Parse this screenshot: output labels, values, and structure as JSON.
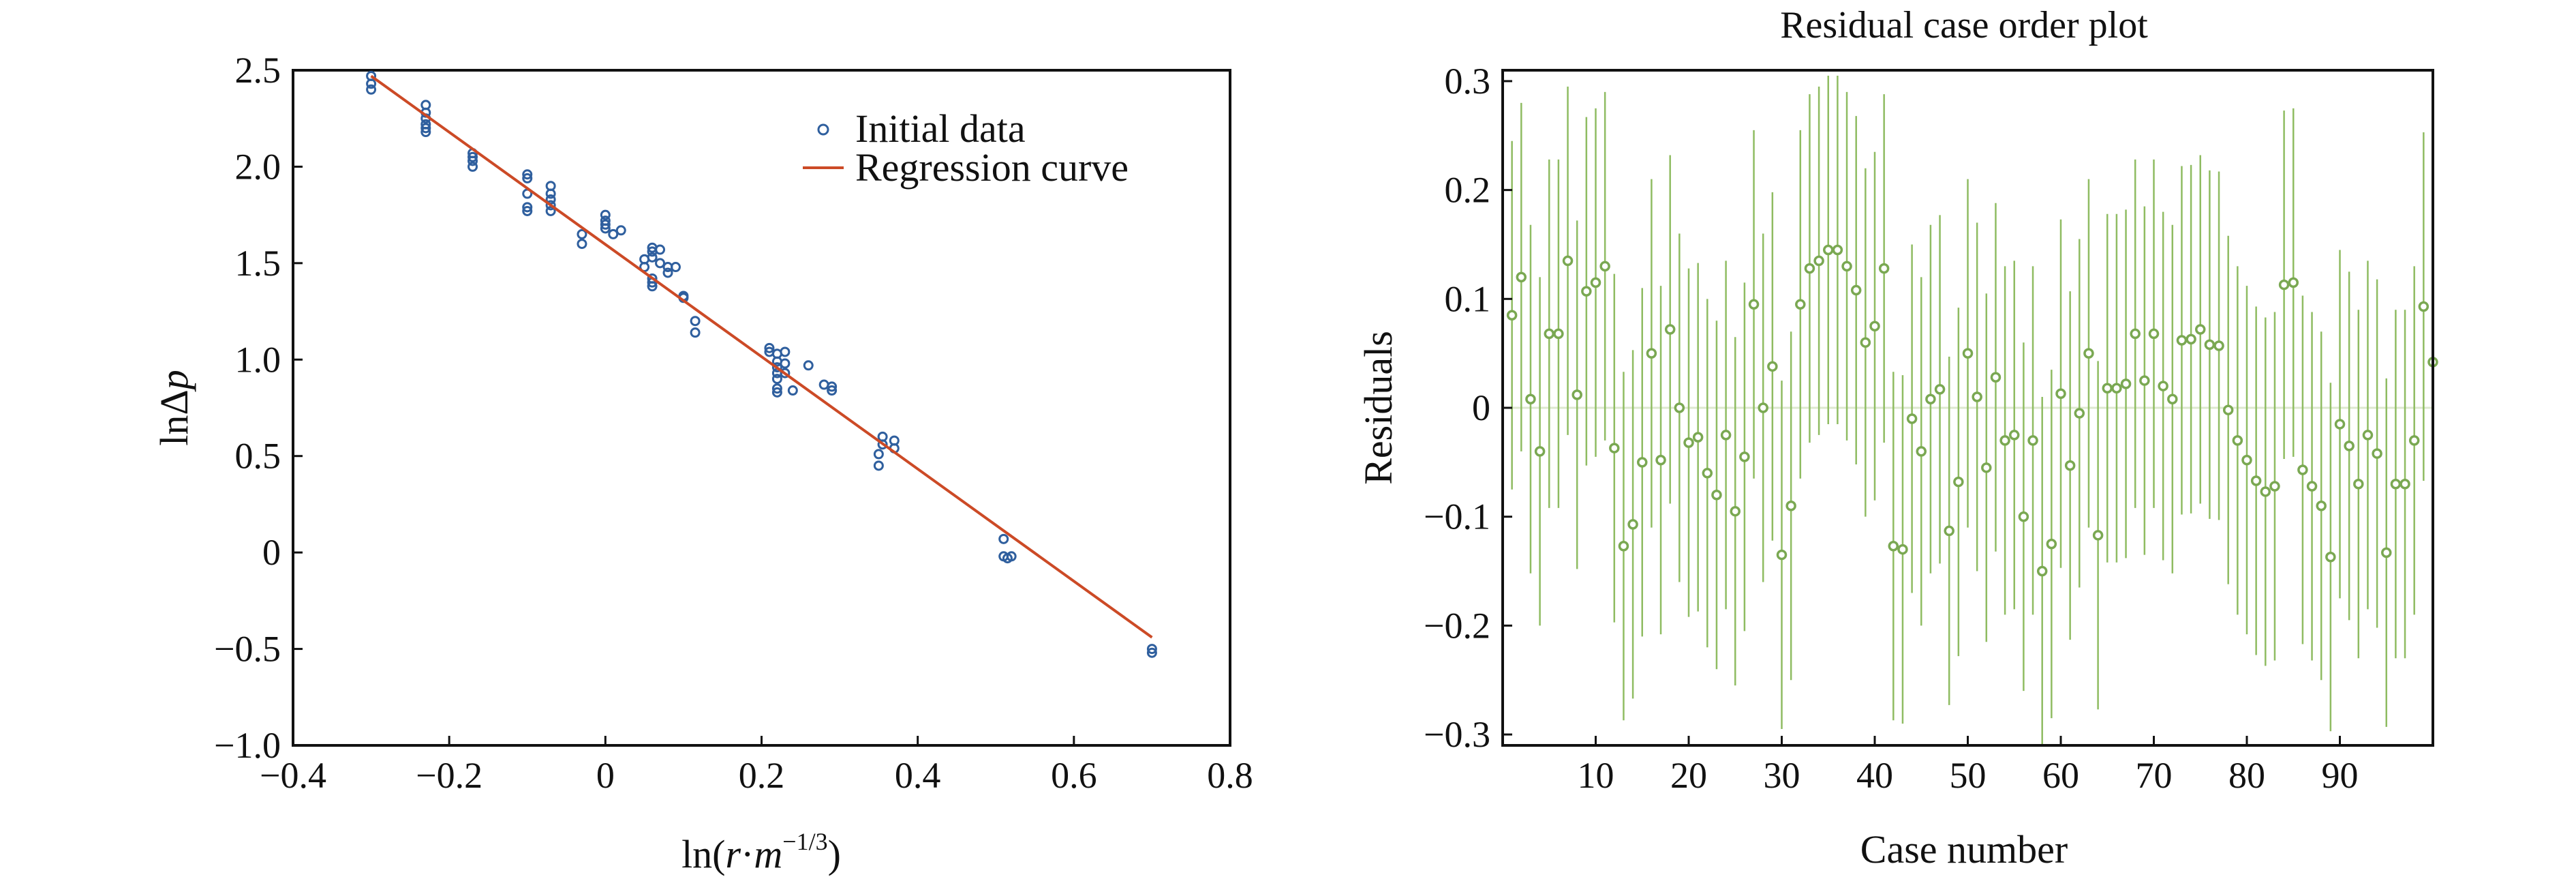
{
  "colors": {
    "scatter_marker": "#2f5f9e",
    "regression_line": "#cc4a26",
    "residual_marker": "#7aa852",
    "residual_bar": "#8fbc62",
    "axis": "#111111"
  },
  "chart_data": [
    {
      "type": "scatter",
      "title": "",
      "xlabel_parts": {
        "prefix": "ln(",
        "r": "r",
        "dot": "·",
        "m": "m",
        "exp": "−1/3",
        "suffix": ")"
      },
      "ylabel_parts": {
        "prefix": "lnΔ",
        "p": "p"
      },
      "xlim": [
        -0.4,
        0.8
      ],
      "ylim": [
        -1.0,
        2.5
      ],
      "xticks": [
        -0.4,
        -0.2,
        0,
        0.2,
        0.4,
        0.6,
        0.8
      ],
      "xtick_labels": [
        "−0.4",
        "−0.2",
        "0",
        "0.2",
        "0.4",
        "0.6",
        "0.8"
      ],
      "yticks": [
        -1.0,
        -0.5,
        0,
        0.5,
        1.0,
        1.5,
        2.0,
        2.5
      ],
      "ytick_labels": [
        "−1.0",
        "−0.5",
        "0",
        "0.5",
        "1.0",
        "1.5",
        "2.0",
        "2.5"
      ],
      "grid": false,
      "legend_position": "top-right",
      "legend": [
        "Initial data",
        "Regression curve"
      ],
      "series": [
        {
          "name": "Initial data",
          "marker": "open-circle",
          "points": [
            [
              -0.3,
              2.47
            ],
            [
              -0.3,
              2.43
            ],
            [
              -0.3,
              2.4
            ],
            [
              -0.23,
              2.32
            ],
            [
              -0.23,
              2.28
            ],
            [
              -0.23,
              2.25
            ],
            [
              -0.23,
              2.22
            ],
            [
              -0.23,
              2.2
            ],
            [
              -0.23,
              2.18
            ],
            [
              -0.17,
              2.07
            ],
            [
              -0.17,
              2.05
            ],
            [
              -0.17,
              2.03
            ],
            [
              -0.17,
              2.0
            ],
            [
              -0.1,
              1.96
            ],
            [
              -0.1,
              1.94
            ],
            [
              -0.1,
              1.86
            ],
            [
              -0.1,
              1.79
            ],
            [
              -0.1,
              1.77
            ],
            [
              -0.07,
              1.9
            ],
            [
              -0.07,
              1.86
            ],
            [
              -0.07,
              1.83
            ],
            [
              -0.07,
              1.8
            ],
            [
              -0.07,
              1.77
            ],
            [
              -0.03,
              1.65
            ],
            [
              -0.03,
              1.6
            ],
            [
              0.0,
              1.75
            ],
            [
              0.0,
              1.72
            ],
            [
              0.0,
              1.7
            ],
            [
              0.0,
              1.68
            ],
            [
              0.01,
              1.65
            ],
            [
              0.02,
              1.67
            ],
            [
              0.05,
              1.52
            ],
            [
              0.05,
              1.48
            ],
            [
              0.06,
              1.58
            ],
            [
              0.06,
              1.56
            ],
            [
              0.06,
              1.53
            ],
            [
              0.07,
              1.57
            ],
            [
              0.07,
              1.5
            ],
            [
              0.08,
              1.48
            ],
            [
              0.08,
              1.45
            ],
            [
              0.09,
              1.48
            ],
            [
              0.06,
              1.42
            ],
            [
              0.06,
              1.4
            ],
            [
              0.06,
              1.38
            ],
            [
              0.1,
              1.33
            ],
            [
              0.1,
              1.32
            ],
            [
              0.115,
              1.2
            ],
            [
              0.115,
              1.14
            ],
            [
              0.21,
              1.06
            ],
            [
              0.21,
              1.04
            ],
            [
              0.22,
              1.03
            ],
            [
              0.22,
              0.99
            ],
            [
              0.22,
              0.96
            ],
            [
              0.22,
              0.93
            ],
            [
              0.22,
              0.9
            ],
            [
              0.22,
              0.85
            ],
            [
              0.22,
              0.83
            ],
            [
              0.23,
              1.04
            ],
            [
              0.23,
              0.98
            ],
            [
              0.23,
              0.93
            ],
            [
              0.24,
              0.84
            ],
            [
              0.26,
              0.97
            ],
            [
              0.28,
              0.87
            ],
            [
              0.29,
              0.86
            ],
            [
              0.29,
              0.84
            ],
            [
              0.35,
              0.45
            ],
            [
              0.35,
              0.51
            ],
            [
              0.355,
              0.56
            ],
            [
              0.355,
              0.6
            ],
            [
              0.37,
              0.58
            ],
            [
              0.37,
              0.54
            ],
            [
              0.51,
              0.07
            ],
            [
              0.51,
              -0.02
            ],
            [
              0.515,
              -0.03
            ],
            [
              0.52,
              -0.02
            ],
            [
              0.7,
              -0.5
            ],
            [
              0.7,
              -0.52
            ]
          ]
        },
        {
          "name": "Regression curve",
          "type": "line",
          "points": [
            [
              -0.3,
              2.47
            ],
            [
              0.7,
              -0.44
            ]
          ]
        }
      ]
    },
    {
      "type": "errorbar",
      "title": "Residual case order plot",
      "xlabel": "Case number",
      "ylabel": "Residuals",
      "xlim": [
        0,
        100
      ],
      "ylim": [
        -0.31,
        0.31
      ],
      "xticks": [
        10,
        20,
        30,
        40,
        50,
        60,
        70,
        80,
        90
      ],
      "xtick_labels": [
        "10",
        "20",
        "30",
        "40",
        "50",
        "60",
        "70",
        "80",
        "90"
      ],
      "yticks": [
        -0.3,
        -0.2,
        -0.1,
        0,
        0.1,
        0.2,
        0.3
      ],
      "ytick_labels": [
        "−0.3",
        "−0.2",
        "−0.1",
        "0",
        "0.1",
        "0.2",
        "0.3"
      ],
      "zero_line": true,
      "grid": false,
      "residuals": [
        0.085,
        0.12,
        0.008,
        -0.04,
        0.068,
        0.068,
        0.135,
        0.012,
        0.107,
        0.115,
        0.13,
        -0.037,
        -0.127,
        -0.107,
        -0.05,
        0.05,
        -0.048,
        0.072,
        0.0,
        -0.032,
        -0.027,
        -0.06,
        -0.08,
        -0.025,
        -0.095,
        -0.045,
        0.095,
        0.0,
        0.038,
        -0.135,
        -0.09,
        0.095,
        0.128,
        0.135,
        0.145,
        0.145,
        0.13,
        0.108,
        0.06,
        0.075,
        0.128,
        -0.127,
        -0.13,
        -0.01,
        -0.04,
        0.008,
        0.017,
        -0.113,
        -0.068,
        0.05,
        0.01,
        -0.055,
        0.028,
        -0.03,
        -0.025,
        -0.1,
        -0.03,
        -0.15,
        -0.125,
        0.013,
        -0.053,
        -0.005,
        0.05,
        -0.117,
        0.018,
        0.018,
        0.022,
        0.068,
        0.025,
        0.068,
        0.02,
        0.008,
        0.062,
        0.063,
        0.072,
        0.058,
        0.057,
        -0.002,
        -0.03,
        -0.048,
        -0.067,
        -0.077,
        -0.072,
        0.113,
        0.115,
        -0.057,
        -0.072,
        -0.09,
        -0.137,
        -0.015,
        -0.035,
        -0.07,
        -0.025,
        -0.042,
        -0.133,
        -0.07,
        -0.07,
        -0.03,
        0.093,
        0.042
      ],
      "bar_halfwidth": 0.16
    }
  ]
}
